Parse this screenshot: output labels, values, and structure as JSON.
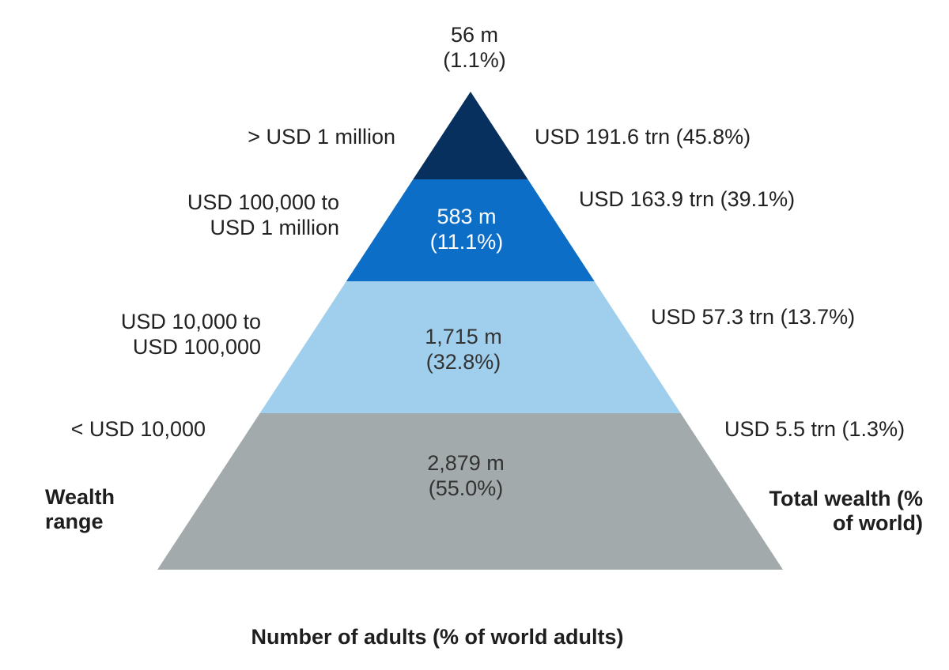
{
  "chart_data": {
    "type": "pyramid",
    "title": "",
    "left_axis_label": "Wealth range",
    "right_axis_label": "Total wealth (% of world)",
    "bottom_label": "Number of adults (% of world adults)",
    "tiers": [
      {
        "wealth_range": "> USD 1 million",
        "wealth_range_lines": [
          "> USD 1 million"
        ],
        "adults": "56 m",
        "adults_share": "(1.1%)",
        "adults_millions": 56,
        "adults_pct": 1.1,
        "total_wealth": "USD 191.6 trn (45.8%)",
        "wealth_trn": 191.6,
        "wealth_pct": 45.8,
        "color": "#07305e"
      },
      {
        "wealth_range": "USD 100,000 to USD 1 million",
        "wealth_range_lines": [
          "USD 100,000 to",
          "USD 1 million"
        ],
        "adults": "583 m",
        "adults_share": "(11.1%)",
        "adults_millions": 583,
        "adults_pct": 11.1,
        "total_wealth": "USD 163.9 trn (39.1%)",
        "wealth_trn": 163.9,
        "wealth_pct": 39.1,
        "color": "#0c6ec6"
      },
      {
        "wealth_range": "USD 10,000 to USD 100,000",
        "wealth_range_lines": [
          "USD 10,000 to",
          "USD 100,000"
        ],
        "adults": "1,715 m",
        "adults_share": "(32.8%)",
        "adults_millions": 1715,
        "adults_pct": 32.8,
        "total_wealth": "USD 57.3 trn (13.7%)",
        "wealth_trn": 57.3,
        "wealth_pct": 13.7,
        "color": "#a0cfed"
      },
      {
        "wealth_range": "< USD 10,000",
        "wealth_range_lines": [
          "< USD 10,000"
        ],
        "adults": "2,879 m",
        "adults_share": "(55.0%)",
        "adults_millions": 2879,
        "adults_pct": 55.0,
        "total_wealth": "USD 5.5 trn (1.3%)",
        "wealth_trn": 5.5,
        "wealth_pct": 1.3,
        "color": "#a3aaab"
      }
    ]
  }
}
